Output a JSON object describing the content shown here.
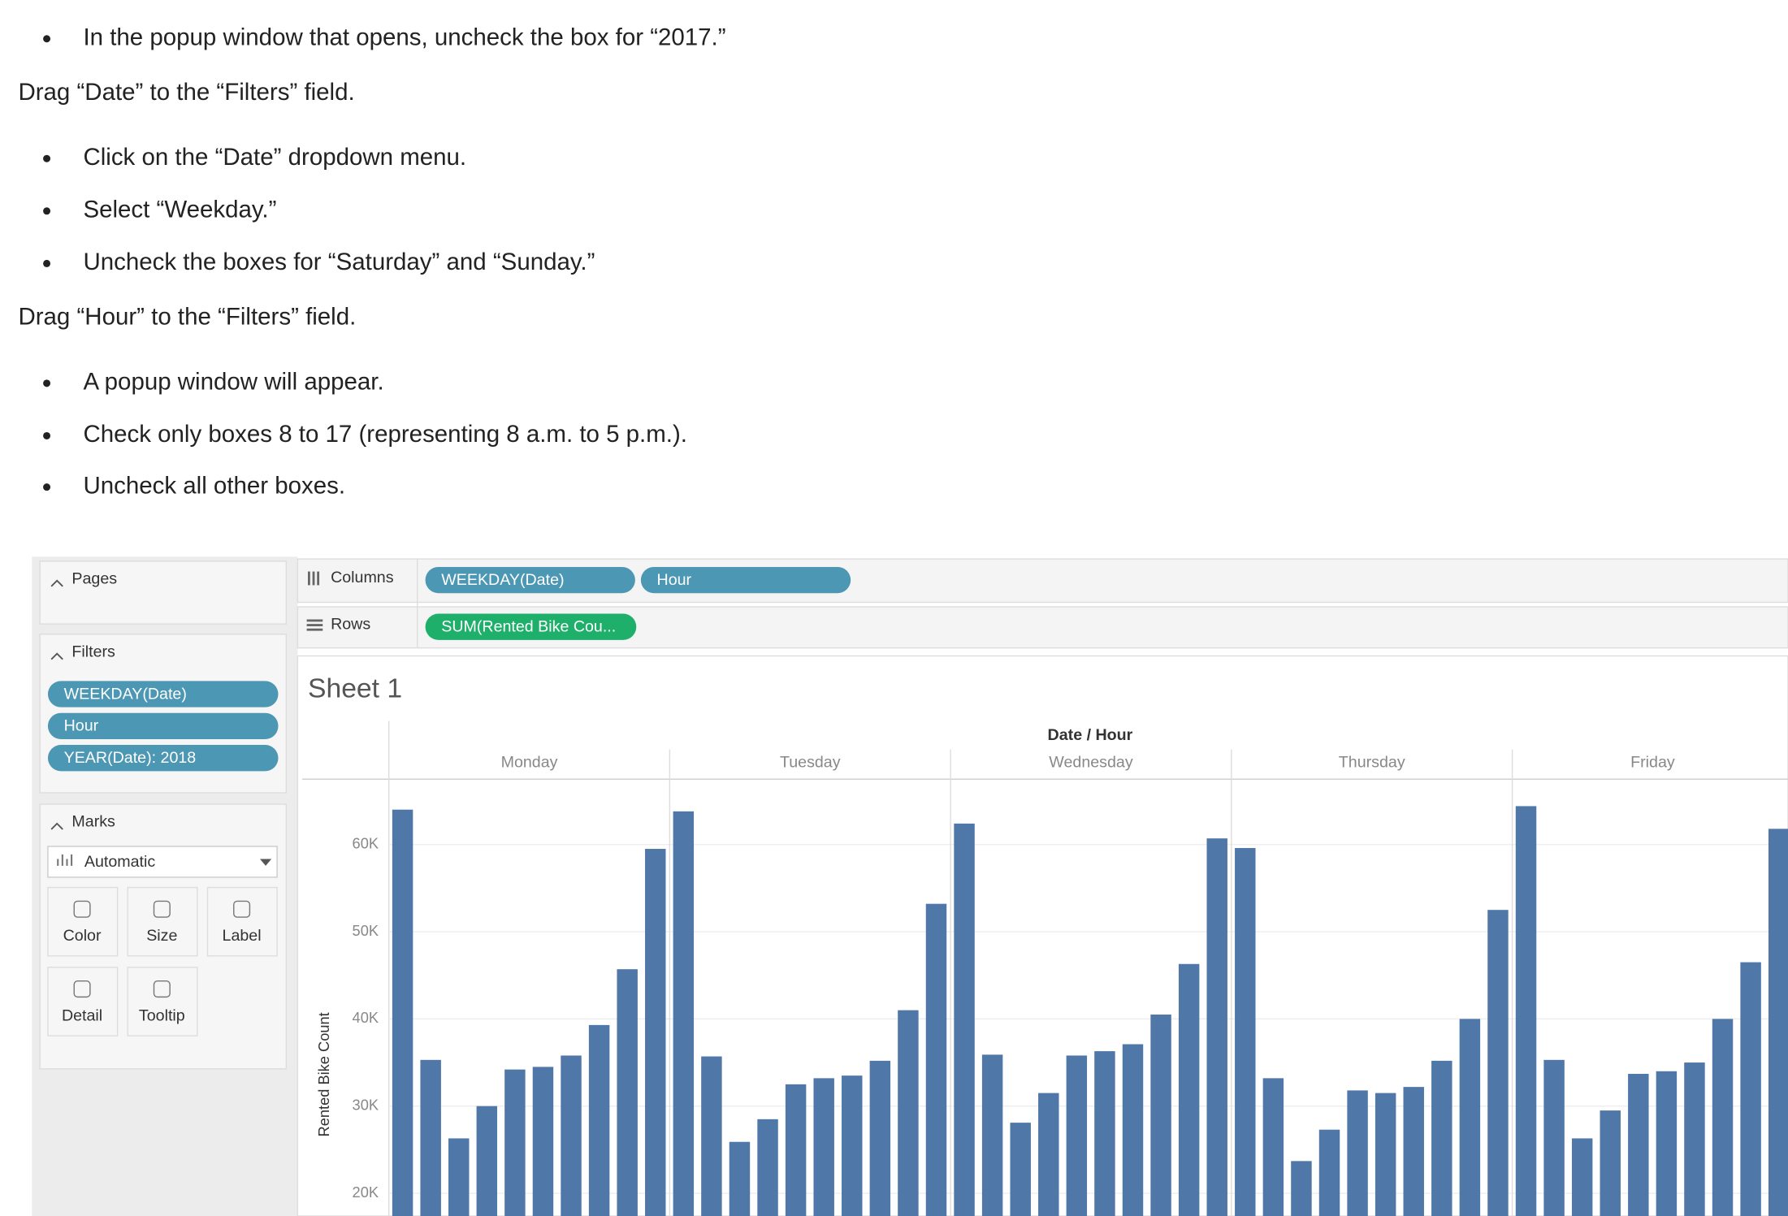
{
  "document": {
    "lines": [
      {
        "text": "In the popup window that opens, uncheck the box for “2017.”",
        "bullet": true
      },
      {
        "text": "Drag “Date” to the “Filters” field.",
        "bullet": false
      },
      {
        "text": "Click on the “Date” dropdown menu.",
        "bullet": true
      },
      {
        "text": "Select “Weekday.”",
        "bullet": true
      },
      {
        "text": "Uncheck the boxes for “Saturday” and “Sunday.”",
        "bullet": true
      },
      {
        "text": "Drag “Hour” to the “Filters” field.",
        "bullet": false
      },
      {
        "text": "A popup window will appear.",
        "bullet": true
      },
      {
        "text": "Check only boxes 8 to 17 (representing 8 a.m. to 5 p.m.).",
        "bullet": true
      },
      {
        "text": "Uncheck all other boxes.",
        "bullet": true
      }
    ]
  },
  "ui": {
    "pages": "Pages",
    "filters": {
      "title": "Filters",
      "pills": [
        "WEEKDAY(Date)",
        "Hour",
        "YEAR(Date): 2018"
      ]
    },
    "marks": {
      "title": "Marks",
      "type": "Automatic",
      "buttons": [
        "Color",
        "Size",
        "Label",
        "Detail",
        "Tooltip"
      ]
    },
    "columns": {
      "label": "Columns",
      "pills": [
        "WEEKDAY(Date)",
        "Hour"
      ]
    },
    "rows": {
      "label": "Rows",
      "pills": [
        "SUM(Rented Bike Cou..."
      ]
    },
    "sheet_title": "Sheet 1"
  },
  "chart_data": {
    "type": "bar",
    "x_label": "Date / Hour",
    "y_label": "Rented Bike Count",
    "color": "#4f77a8",
    "series": [
      {
        "name": "Monday",
        "values": [
          64000,
          35300,
          26300,
          30000,
          34200,
          34500,
          35800,
          39300,
          45700,
          59500
        ]
      },
      {
        "name": "Tuesday",
        "values": [
          63800,
          35700,
          25900,
          28500,
          32500,
          33200,
          33500,
          35200,
          41000,
          53200
        ]
      },
      {
        "name": "Wednesday",
        "values": [
          62400,
          35900,
          28100,
          31500,
          35800,
          36300,
          37100,
          40500,
          46300,
          60700
        ]
      },
      {
        "name": "Thursday",
        "values": [
          59600,
          33200,
          23700,
          27300,
          31800,
          31500,
          32200,
          35200,
          40000,
          52500
        ]
      },
      {
        "name": "Friday",
        "values": [
          64400,
          35300,
          26300,
          29500,
          33700,
          34000,
          35000,
          40000,
          46500,
          61800
        ]
      }
    ],
    "ylim": [
      17400,
      67500
    ],
    "yticks": [
      {
        "value": 20000,
        "label": "20K"
      },
      {
        "value": 30000,
        "label": "30K"
      },
      {
        "value": 40000,
        "label": "40K"
      },
      {
        "value": 50000,
        "label": "50K"
      },
      {
        "value": 60000,
        "label": "60K"
      }
    ],
    "grid": true
  }
}
